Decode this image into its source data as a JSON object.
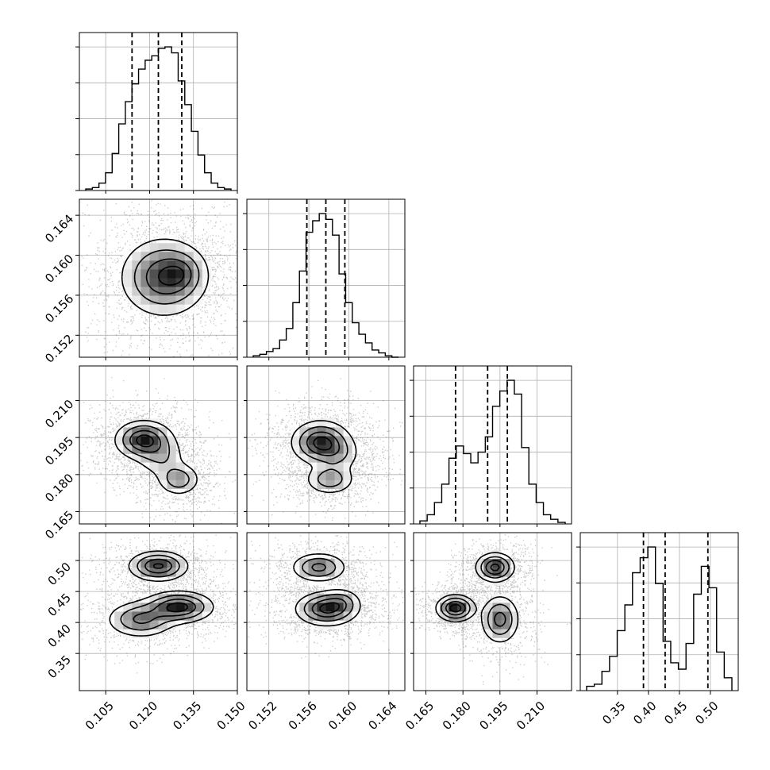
{
  "chart_data": {
    "type": "corner",
    "title": "",
    "grid": true,
    "parameters": [
      {
        "id": "p0",
        "range": [
          0.096,
          0.15
        ],
        "ticks": [
          "0.105",
          "0.120",
          "0.135",
          "0.150"
        ],
        "quantiles": [
          0.114,
          0.123,
          0.131
        ],
        "mode": [
          0.127,
          0.132
        ]
      },
      {
        "id": "p1",
        "range": [
          0.1498,
          0.1656
        ],
        "ticks": [
          "0.152",
          "0.156",
          "0.160",
          "0.164"
        ],
        "quantiles": [
          0.1558,
          0.1577,
          0.1596
        ],
        "mode": [
          0.1576,
          0.158
        ]
      },
      {
        "id": "p2",
        "range": [
          0.16,
          0.224
        ],
        "ticks": [
          "0.165",
          "0.180",
          "0.195",
          "0.210"
        ],
        "quantiles": [
          0.177,
          0.19,
          0.198
        ],
        "mode": [
          0.194,
          0.196
        ]
      },
      {
        "id": "p3",
        "range": [
          0.29,
          0.545
        ],
        "ticks": [
          "0.35",
          "0.40",
          "0.45",
          "0.50"
        ],
        "quantiles": [
          0.392,
          0.427,
          0.496
        ],
        "mode": [
          0.425,
          0.5
        ]
      }
    ],
    "histograms": [
      {
        "param": 0,
        "values": [
          1,
          2,
          5,
          12,
          25,
          45,
          60,
          72,
          82,
          88,
          91,
          96,
          97,
          93,
          74,
          58,
          40,
          24,
          12,
          5,
          2,
          1
        ]
      },
      {
        "param": 1,
        "values": [
          1,
          2,
          4,
          6,
          12,
          20,
          38,
          60,
          87,
          95,
          100,
          96,
          85,
          58,
          38,
          24,
          16,
          10,
          5,
          3,
          1,
          0
        ]
      },
      {
        "param": 2,
        "values": [
          2,
          6,
          14,
          26,
          43,
          51,
          46,
          40,
          47,
          57,
          77,
          87,
          94,
          85,
          50,
          26,
          14,
          6,
          3,
          1
        ]
      },
      {
        "param": 3,
        "values": [
          2,
          3,
          9,
          16,
          28,
          40,
          55,
          62,
          67,
          50,
          23,
          13,
          10,
          22,
          45,
          58,
          48,
          18,
          6
        ]
      }
    ],
    "contour_panels": [
      {
        "x": 0,
        "y": 1,
        "blobs": [
          {
            "x": 0.125,
            "y": 0.1578,
            "sx": 0.0076,
            "sy": 0.002,
            "r": 0,
            "w": 1.0
          },
          {
            "x": 0.131,
            "y": 0.1582,
            "sx": 0.004,
            "sy": 0.0011,
            "r": 0,
            "w": 0.35
          }
        ]
      },
      {
        "x": 0,
        "y": 2,
        "blobs": [
          {
            "x": 0.118,
            "y": 0.194,
            "sx": 0.005,
            "sy": 0.004,
            "r": 0,
            "w": 1.0
          },
          {
            "x": 0.13,
            "y": 0.178,
            "sx": 0.0038,
            "sy": 0.0034,
            "r": 0,
            "w": 0.55
          },
          {
            "x": 0.124,
            "y": 0.187,
            "sx": 0.0045,
            "sy": 0.0045,
            "r": 0,
            "w": 0.35
          }
        ]
      },
      {
        "x": 0,
        "y": 3,
        "blobs": [
          {
            "x": 0.123,
            "y": 0.491,
            "sx": 0.0052,
            "sy": 0.0125,
            "r": 0,
            "w": 0.75
          },
          {
            "x": 0.13,
            "y": 0.425,
            "sx": 0.006,
            "sy": 0.013,
            "r": 0,
            "w": 0.8
          },
          {
            "x": 0.117,
            "y": 0.405,
            "sx": 0.006,
            "sy": 0.015,
            "r": 0,
            "w": 0.55
          }
        ]
      },
      {
        "x": 1,
        "y": 2,
        "blobs": [
          {
            "x": 0.1572,
            "y": 0.193,
            "sx": 0.0015,
            "sy": 0.0045,
            "r": 0,
            "w": 1.0
          },
          {
            "x": 0.1581,
            "y": 0.178,
            "sx": 0.0013,
            "sy": 0.0032,
            "r": 0,
            "w": 0.55
          },
          {
            "x": 0.159,
            "y": 0.188,
            "sx": 0.0012,
            "sy": 0.004,
            "r": 0,
            "w": 0.3
          }
        ]
      },
      {
        "x": 1,
        "y": 3,
        "blobs": [
          {
            "x": 0.157,
            "y": 0.489,
            "sx": 0.0014,
            "sy": 0.012,
            "r": 0,
            "w": 0.75
          },
          {
            "x": 0.1578,
            "y": 0.422,
            "sx": 0.0016,
            "sy": 0.014,
            "r": 0,
            "w": 1.0
          },
          {
            "x": 0.1593,
            "y": 0.435,
            "sx": 0.001,
            "sy": 0.011,
            "r": 0,
            "w": 0.3
          }
        ]
      },
      {
        "x": 2,
        "y": 3,
        "blobs": [
          {
            "x": 0.193,
            "y": 0.489,
            "sx": 0.004,
            "sy": 0.012,
            "r": 0,
            "w": 0.85
          },
          {
            "x": 0.177,
            "y": 0.423,
            "sx": 0.004,
            "sy": 0.011,
            "r": 0,
            "w": 0.9
          },
          {
            "x": 0.195,
            "y": 0.405,
            "sx": 0.004,
            "sy": 0.02,
            "r": 0,
            "w": 0.65
          }
        ]
      }
    ]
  }
}
